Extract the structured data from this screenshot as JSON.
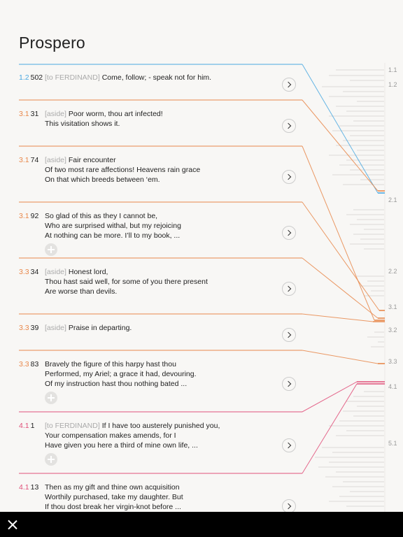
{
  "title": "Prospero",
  "colors": {
    "act1": "#4aa8e0",
    "act3": "#e8874a",
    "act4": "#e0507a",
    "divider": "#e4e2de",
    "minimap": "#dcdad6"
  },
  "entries": [
    {
      "act": "1.2",
      "line": "502",
      "direction": "[to FERDINAND]",
      "text": [
        "Come, follow; - speak not for him."
      ],
      "color": "#4aa8e0",
      "has_add": false
    },
    {
      "act": "3.1",
      "line": "31",
      "direction": "[aside]",
      "text": [
        "Poor worm, thou art infected!",
        "This visitation shows it."
      ],
      "color": "#e8874a",
      "has_add": false
    },
    {
      "act": "3.1",
      "line": "74",
      "direction": "[aside]",
      "text": [
        "Fair encounter",
        "Of two most rare affections! Heavens rain grace",
        "On that which breeds between ‘em."
      ],
      "color": "#e8874a",
      "has_add": false
    },
    {
      "act": "3.1",
      "line": "92",
      "direction": "",
      "text": [
        "So glad of this as they I cannot be,",
        "Who are surprised withal, but my rejoicing",
        "At nothing can be more. I’ll to my book, ..."
      ],
      "color": "#e8874a",
      "has_add": true
    },
    {
      "act": "3.3",
      "line": "34",
      "direction": "[aside]",
      "text": [
        "Honest lord,",
        "Thou hast said well, for some of you there present",
        "Are worse than devils."
      ],
      "color": "#e8874a",
      "has_add": false
    },
    {
      "act": "3.3",
      "line": "39",
      "direction": "[aside]",
      "text": [
        "Praise in departing."
      ],
      "color": "#e8874a",
      "has_add": false
    },
    {
      "act": "3.3",
      "line": "83",
      "direction": "",
      "text": [
        "Bravely the figure of this harpy hast thou",
        "Performed, my Ariel; a grace it had, devouring.",
        "Of my instruction hast thou nothing bated ..."
      ],
      "color": "#e8874a",
      "has_add": true
    },
    {
      "act": "4.1",
      "line": "1",
      "direction": "[to FERDINAND]",
      "text": [
        "If I have too austerely punished you,",
        "Your compensation makes amends, for I",
        "Have given you here a third of mine own life, ..."
      ],
      "color": "#e0507a",
      "has_add": true
    },
    {
      "act": "4.1",
      "line": "13",
      "direction": "",
      "text": [
        "Then as my gift and thine own acquisition",
        "Worthily purchased, take my daughter. But",
        "If thou dost break her virgin-knot before ..."
      ],
      "color": "#e0507a",
      "has_add": false
    }
  ],
  "scene_labels": [
    "1.1",
    "1.2",
    "2.1",
    "2.2",
    "3.1",
    "3.2",
    "3.3",
    "4.1",
    "5.1"
  ]
}
